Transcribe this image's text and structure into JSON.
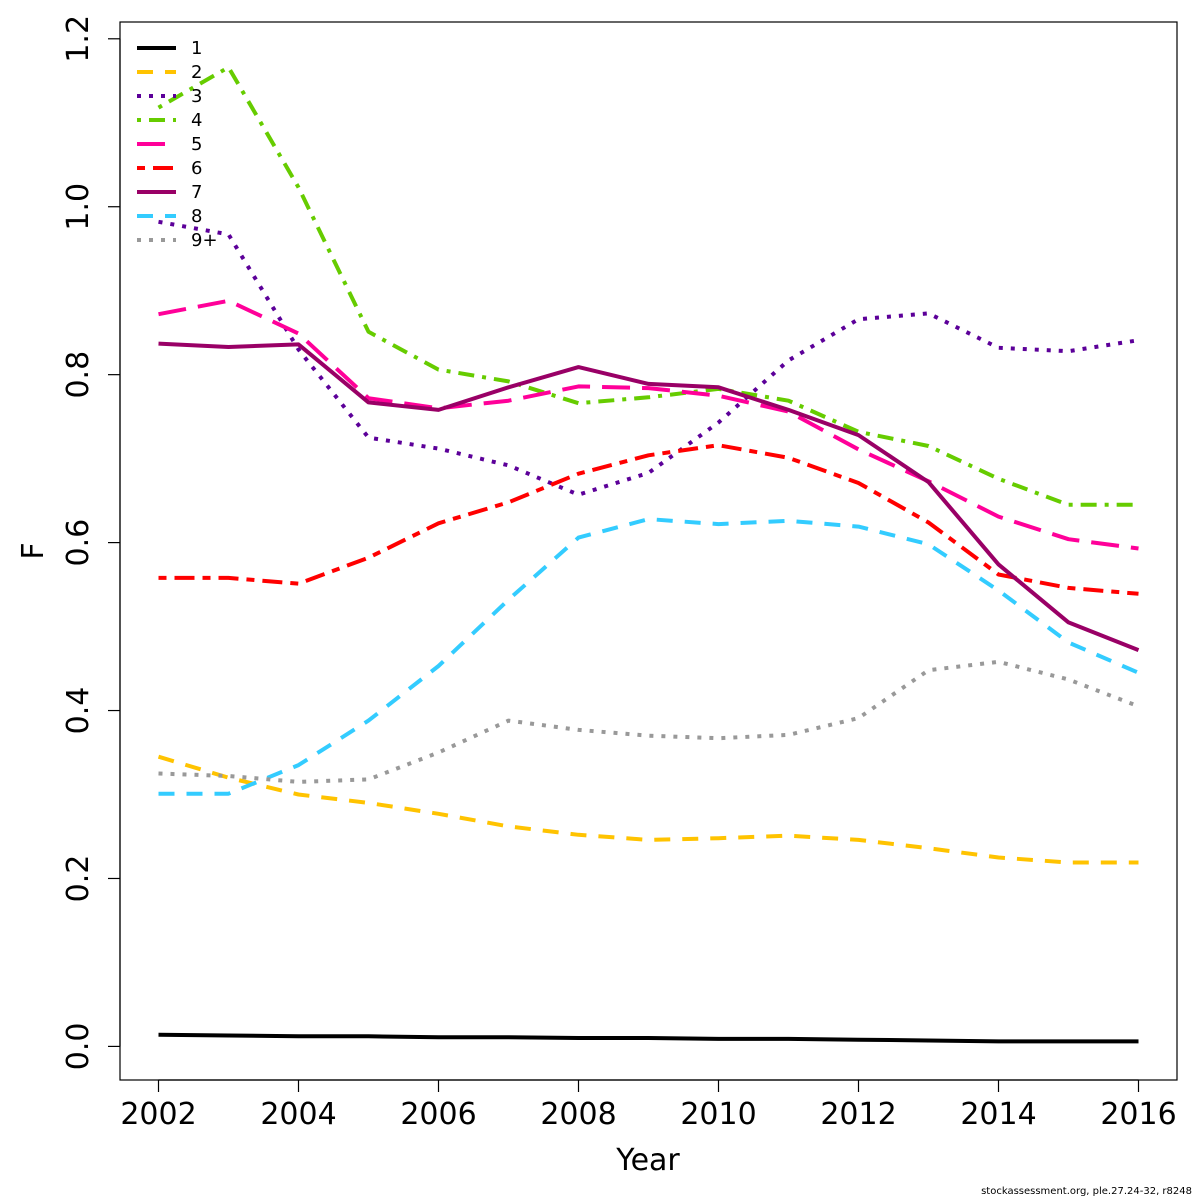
{
  "chart_data": {
    "type": "line",
    "title": "",
    "xlabel": "Year",
    "ylabel": "F",
    "xlim": [
      2001.45,
      2016.55
    ],
    "ylim": [
      -0.04,
      1.22
    ],
    "x_ticks": [
      2002,
      2004,
      2006,
      2008,
      2010,
      2012,
      2014,
      2016
    ],
    "x_tick_labels": [
      "2002",
      "2004",
      "2006",
      "2008",
      "2010",
      "2012",
      "2014",
      "2016"
    ],
    "y_ticks": [
      0.0,
      0.2,
      0.4,
      0.6,
      0.8,
      1.0,
      1.2
    ],
    "y_tick_labels": [
      "0.0",
      "0.2",
      "0.4",
      "0.6",
      "0.8",
      "1.0",
      "1.2"
    ],
    "grid": false,
    "legend_position": "top-left",
    "x": [
      2002,
      2003,
      2004,
      2005,
      2006,
      2007,
      2008,
      2009,
      2010,
      2011,
      2012,
      2013,
      2014,
      2015,
      2016
    ],
    "series": [
      {
        "name": "1",
        "color": "#000000",
        "dash": "solid",
        "values": [
          0.014,
          0.013,
          0.012,
          0.012,
          0.011,
          0.011,
          0.01,
          0.01,
          0.009,
          0.009,
          0.008,
          0.007,
          0.006,
          0.006,
          0.006
        ]
      },
      {
        "name": "2",
        "color": "#FFC300",
        "dash": "dashed",
        "values": [
          0.345,
          0.32,
          0.3,
          0.29,
          0.277,
          0.262,
          0.252,
          0.246,
          0.248,
          0.251,
          0.246,
          0.236,
          0.225,
          0.219,
          0.219
        ]
      },
      {
        "name": "3",
        "color": "#5C0099",
        "dash": "dotted",
        "values": [
          0.982,
          0.967,
          0.83,
          0.725,
          0.712,
          0.692,
          0.657,
          0.683,
          0.743,
          0.817,
          0.866,
          0.873,
          0.832,
          0.828,
          0.841
        ]
      },
      {
        "name": "4",
        "color": "#66CC00",
        "dash": "dotdash",
        "values": [
          1.118,
          1.166,
          1.023,
          0.851,
          0.806,
          0.792,
          0.766,
          0.773,
          0.783,
          0.769,
          0.732,
          0.715,
          0.676,
          0.645,
          0.645
        ]
      },
      {
        "name": "5",
        "color": "#FF0099",
        "dash": "longdash",
        "values": [
          0.872,
          0.888,
          0.849,
          0.772,
          0.76,
          0.769,
          0.786,
          0.784,
          0.775,
          0.756,
          0.711,
          0.673,
          0.631,
          0.604,
          0.593
        ]
      },
      {
        "name": "6",
        "color": "#FF0000",
        "dash": "twodash",
        "values": [
          0.558,
          0.558,
          0.551,
          0.582,
          0.623,
          0.648,
          0.682,
          0.704,
          0.716,
          0.701,
          0.671,
          0.624,
          0.562,
          0.546,
          0.539
        ]
      },
      {
        "name": "7",
        "color": "#990066",
        "dash": "solid",
        "values": [
          0.837,
          0.833,
          0.836,
          0.767,
          0.758,
          0.785,
          0.809,
          0.789,
          0.785,
          0.758,
          0.728,
          0.672,
          0.574,
          0.505,
          0.472
        ]
      },
      {
        "name": "8",
        "color": "#33CCFF",
        "dash": "dashed",
        "values": [
          0.301,
          0.301,
          0.335,
          0.388,
          0.453,
          0.532,
          0.606,
          0.628,
          0.622,
          0.626,
          0.619,
          0.598,
          0.543,
          0.481,
          0.445
        ]
      },
      {
        "name": "9+",
        "color": "#999999",
        "dash": "dotted",
        "values": [
          0.325,
          0.322,
          0.315,
          0.318,
          0.35,
          0.388,
          0.377,
          0.37,
          0.367,
          0.371,
          0.391,
          0.448,
          0.458,
          0.437,
          0.405
        ]
      }
    ]
  },
  "footnote": "stockassessment.org, ple.27.24-32, r8248"
}
